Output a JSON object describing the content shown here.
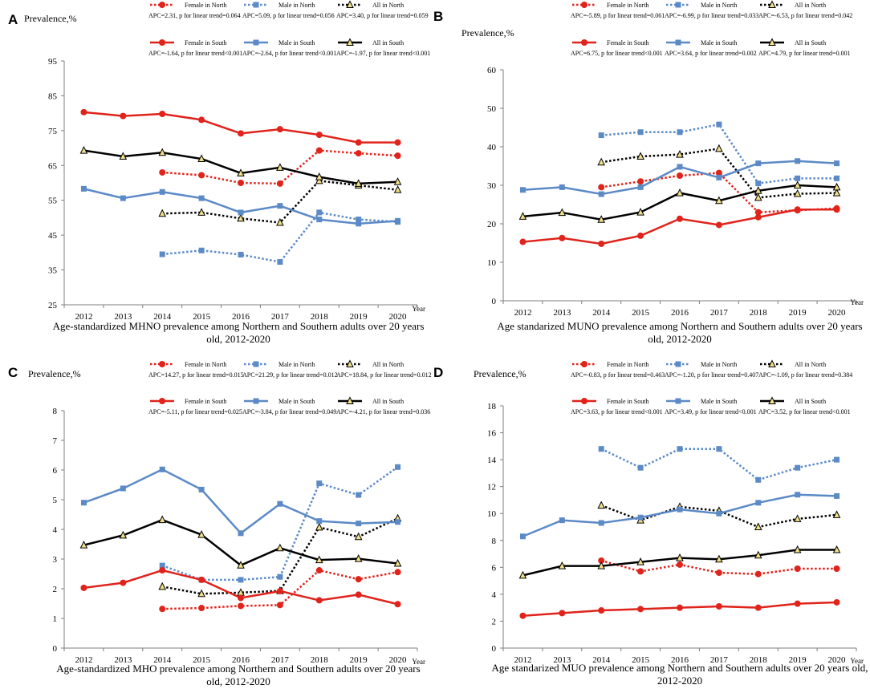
{
  "figure": {
    "series_styles": {
      "Female in North": {
        "color": "#e0231b",
        "dashed": true,
        "marker": "circle"
      },
      "Male in North": {
        "color": "#5b8ac6",
        "dashed": true,
        "marker": "square"
      },
      "All in North": {
        "color": "#000000",
        "dashed": true,
        "marker": "triangle"
      },
      "Female in South": {
        "color": "#e0231b",
        "dashed": false,
        "marker": "circle"
      },
      "Male in South": {
        "color": "#5b8ac6",
        "dashed": false,
        "marker": "square"
      },
      "All in South": {
        "color": "#000000",
        "dashed": false,
        "marker": "triangle"
      }
    }
  },
  "chart_data": [
    {
      "id": "A",
      "type": "line",
      "letter": "A",
      "ylabel": "Prevalence,%",
      "xlabel": "Year",
      "title": "Age-standardized MHNO prevalence among Northern and Southern adults over 20 years old, 2012-2020",
      "title_lines": [
        "Age-standardized MHNO prevalence among Northern and Southern adults over 20 years",
        "old, 2012-2020"
      ],
      "ylim": [
        25,
        95
      ],
      "yticks": [
        25,
        35,
        45,
        55,
        65,
        75,
        85,
        95
      ],
      "categories": [
        "2012",
        "2013",
        "2014",
        "2015",
        "2016",
        "2017",
        "2018",
        "2019",
        "2020"
      ],
      "series": [
        {
          "name": "Female in North",
          "apc": "APC=2.31, p for linear trend=0.064",
          "values": [
            null,
            null,
            63.0,
            62.2,
            60.0,
            59.8,
            69.3,
            68.5,
            67.8
          ]
        },
        {
          "name": "Male in North",
          "apc": "APC=5.09, p for linear trend=0.056",
          "values": [
            null,
            null,
            39.5,
            40.6,
            39.4,
            37.3,
            51.5,
            49.5,
            48.8
          ]
        },
        {
          "name": "All in North",
          "apc": "APC=3.40, p for linear trend=0.059",
          "values": [
            null,
            null,
            51.2,
            51.5,
            49.8,
            48.6,
            60.6,
            59.3,
            58.0
          ]
        },
        {
          "name": "Female in South",
          "apc": "APC=-1.64, p for linear trend<0.001",
          "values": [
            80.3,
            79.2,
            79.8,
            78.1,
            74.2,
            75.4,
            73.8,
            71.6,
            71.6
          ]
        },
        {
          "name": "Male in South",
          "apc": "APC=-2.64, p for linear trend<0.001",
          "values": [
            58.3,
            55.6,
            57.4,
            55.6,
            51.5,
            53.4,
            49.5,
            48.3,
            49.1
          ]
        },
        {
          "name": "All in South",
          "apc": "APC=-1.97, p for linear trend<0.001",
          "values": [
            69.3,
            67.6,
            68.7,
            66.9,
            62.8,
            64.4,
            61.7,
            59.8,
            60.3
          ]
        }
      ]
    },
    {
      "id": "B",
      "type": "line",
      "letter": "B",
      "ylabel": "Prevalence,%",
      "xlabel": "Year",
      "title": "Age standarized MUNO prevalence among Northern and Southern adults over 20 years old, 2012-2020",
      "title_lines": [
        "Age standarized MUNO prevalence among Northern  and Southern adults over 20 years",
        "old, 2012-2020"
      ],
      "ylim": [
        0,
        60
      ],
      "yticks": [
        0,
        10,
        20,
        30,
        40,
        50,
        60
      ],
      "categories": [
        "2012",
        "2013",
        "2014",
        "2015",
        "2016",
        "2017",
        "2018",
        "2019",
        "2020"
      ],
      "series": [
        {
          "name": "Female in North",
          "apc": "APC=-5.89, p for linear trend=0.061",
          "values": [
            null,
            null,
            29.5,
            31.0,
            32.5,
            33.2,
            23.0,
            23.5,
            24.0
          ]
        },
        {
          "name": "Male in North",
          "apc": "APC=-6.99, p for linear trend=0.033",
          "values": [
            null,
            null,
            43.0,
            43.8,
            43.8,
            45.8,
            30.5,
            31.8,
            31.8
          ]
        },
        {
          "name": "All in North",
          "apc": "APC=-6.53, p for linear trend=0.042",
          "values": [
            null,
            null,
            36.0,
            37.5,
            38.0,
            39.5,
            26.8,
            27.8,
            28.0
          ]
        },
        {
          "name": "Female in South",
          "apc": "APC=6.75,  p for linear trend<0.001",
          "values": [
            15.3,
            16.3,
            14.8,
            16.9,
            21.3,
            19.7,
            21.7,
            23.7,
            23.7
          ]
        },
        {
          "name": "Male in South",
          "apc": "APC=3.64, p for linear trend=0.002",
          "values": [
            28.8,
            29.5,
            27.7,
            29.5,
            34.8,
            32.0,
            35.7,
            36.3,
            35.7
          ]
        },
        {
          "name": "All in South",
          "apc": "APC=4.79, p for linear trend=0.001",
          "values": [
            21.9,
            22.9,
            21.1,
            23.0,
            28.0,
            26.0,
            28.6,
            30.0,
            29.5
          ]
        }
      ]
    },
    {
      "id": "C",
      "type": "line",
      "letter": "C",
      "ylabel": "Prevalence,%",
      "xlabel": "Year",
      "title": "Age-standardized MHO prevalence among Northern and Southern adults over 20 years old, 2012-2020",
      "title_lines": [
        "Age-standardized MHO prevalence among Northern and Southern  adults over 20 years",
        "old, 2012-2020"
      ],
      "ylim": [
        0,
        8
      ],
      "yticks": [
        0,
        1,
        2,
        3,
        4,
        5,
        6,
        7,
        8
      ],
      "categories": [
        "2012",
        "2013",
        "2014",
        "2015",
        "2016",
        "2017",
        "2018",
        "2019",
        "2020"
      ],
      "series": [
        {
          "name": "Female in North",
          "apc": "APC=14.27, p for linear trend=0.015",
          "values": [
            null,
            null,
            1.32,
            1.35,
            1.42,
            1.45,
            2.62,
            2.32,
            2.56
          ]
        },
        {
          "name": "Male in North",
          "apc": "APC=21.29, p for linear trend=0.012",
          "values": [
            null,
            null,
            2.78,
            2.3,
            2.3,
            2.4,
            5.55,
            5.16,
            6.1
          ]
        },
        {
          "name": "All in North",
          "apc": "APC=18.84, p for linear trend=0.012",
          "values": [
            null,
            null,
            2.07,
            1.83,
            1.87,
            1.93,
            4.07,
            3.75,
            4.37
          ]
        },
        {
          "name": "Female in South",
          "apc": "APC=-5.11, p for linear trend=0.025",
          "values": [
            2.03,
            2.2,
            2.62,
            2.3,
            1.69,
            1.92,
            1.61,
            1.8,
            1.48
          ]
        },
        {
          "name": "Male in South",
          "apc": "APC=-3.84, p for linear trend=0.049",
          "values": [
            4.9,
            5.38,
            6.02,
            5.34,
            3.87,
            4.86,
            4.28,
            4.2,
            4.25
          ]
        },
        {
          "name": "All in South",
          "apc": "APC=-4.21, p for linear trend=0.036",
          "values": [
            3.47,
            3.8,
            4.32,
            3.82,
            2.79,
            3.37,
            2.97,
            3.01,
            2.85
          ]
        }
      ]
    },
    {
      "id": "D",
      "type": "line",
      "letter": "D",
      "ylabel": "Prevalence,%",
      "xlabel": "Year",
      "title": "Age standarized MUO prevalence among Northern and Southern adults over 20 years old, 2012-2020",
      "title_lines": [
        "Age standarized MUO prevalence among Northern and Southern adults over 20 years old,",
        "2012-2020"
      ],
      "ylim": [
        0,
        18
      ],
      "yticks": [
        0,
        2,
        4,
        6,
        8,
        10,
        12,
        14,
        16,
        18
      ],
      "categories": [
        "2012",
        "2013",
        "2014",
        "2015",
        "2016",
        "2017",
        "2018",
        "2019",
        "2020"
      ],
      "series": [
        {
          "name": "Female in North",
          "apc": "APC=-0.83, p for linear trend=0.463",
          "values": [
            null,
            null,
            6.5,
            5.7,
            6.2,
            5.6,
            5.5,
            5.9,
            5.9
          ]
        },
        {
          "name": "Male in North",
          "apc": "APC=-1.20, p for linear trend=0.407",
          "values": [
            null,
            null,
            14.8,
            13.4,
            14.8,
            14.8,
            12.5,
            13.4,
            14.0
          ]
        },
        {
          "name": "All in North",
          "apc": "APC=-1.09, p for linear trend=0.384",
          "values": [
            null,
            null,
            10.6,
            9.5,
            10.5,
            10.2,
            9.0,
            9.6,
            9.9
          ]
        },
        {
          "name": "Female in South",
          "apc": "APC=3.63, p for linear trend<0.001",
          "values": [
            2.4,
            2.6,
            2.8,
            2.9,
            3.0,
            3.1,
            3.0,
            3.3,
            3.4
          ]
        },
        {
          "name": "Male in South",
          "apc": "APC=3.49, p for linear trend<0.001",
          "values": [
            8.3,
            9.5,
            9.3,
            9.7,
            10.3,
            10.0,
            10.8,
            11.4,
            11.3
          ]
        },
        {
          "name": "All in South",
          "apc": "APC=3.52, p for linear trend<0.001",
          "values": [
            5.4,
            6.1,
            6.1,
            6.4,
            6.7,
            6.6,
            6.9,
            7.3,
            7.3
          ]
        }
      ]
    }
  ]
}
